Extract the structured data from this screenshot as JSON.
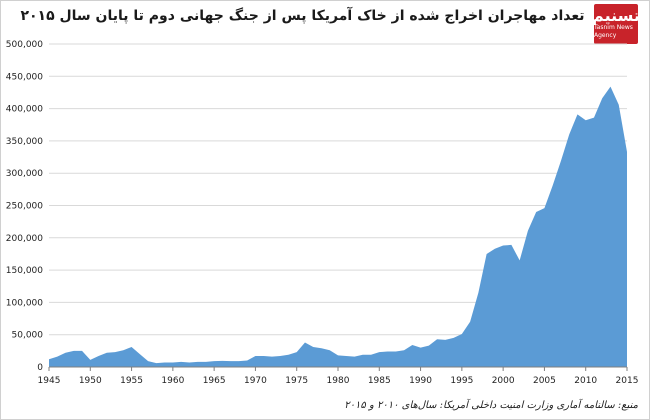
{
  "logo": {
    "mark": "تسنیم",
    "sub": "Tasnim News Agency"
  },
  "colors": {
    "area": "#5b9bd5",
    "grid": "#d9d9d9",
    "axis": "#7f7f7f"
  },
  "chart_data": {
    "type": "area",
    "title": "تعداد مهاجران اخراج شده از خاک آمریکا پس از جنگ جهانی دوم تا پایان سال ۲۰۱۵",
    "xlabel": "",
    "ylabel": "",
    "xlim": [
      1945,
      2015
    ],
    "ylim": [
      0,
      500000
    ],
    "grid": true,
    "x": [
      1945,
      1946,
      1947,
      1948,
      1949,
      1950,
      1951,
      1952,
      1953,
      1954,
      1955,
      1956,
      1957,
      1958,
      1959,
      1960,
      1961,
      1962,
      1963,
      1964,
      1965,
      1966,
      1967,
      1968,
      1969,
      1970,
      1971,
      1972,
      1973,
      1974,
      1975,
      1976,
      1977,
      1978,
      1979,
      1980,
      1981,
      1982,
      1983,
      1984,
      1985,
      1986,
      1987,
      1988,
      1989,
      1990,
      1991,
      1992,
      1993,
      1994,
      1995,
      1996,
      1997,
      1998,
      1999,
      2000,
      2001,
      2002,
      2003,
      2004,
      2005,
      2006,
      2007,
      2008,
      2009,
      2010,
      2011,
      2012,
      2013,
      2014,
      2015
    ],
    "values": [
      12000,
      16000,
      22000,
      25000,
      25000,
      11000,
      17000,
      22000,
      23000,
      26000,
      31000,
      20000,
      9000,
      6000,
      7000,
      7000,
      8000,
      7000,
      8000,
      8000,
      9000,
      9500,
      9000,
      9000,
      10000,
      17000,
      17000,
      16000,
      17000,
      19000,
      23000,
      38000,
      31000,
      29000,
      26000,
      18000,
      17000,
      16000,
      19000,
      19000,
      23000,
      24000,
      24000,
      26000,
      34000,
      30000,
      33000,
      43000,
      42000,
      45000,
      51000,
      70000,
      115000,
      175000,
      183000,
      188000,
      189000,
      165000,
      211000,
      240000,
      246000,
      281000,
      319000,
      360000,
      391000,
      382000,
      386000,
      416000,
      434000,
      406000,
      333000
    ],
    "yticks": [
      0,
      50000,
      100000,
      150000,
      200000,
      250000,
      300000,
      350000,
      400000,
      450000,
      500000
    ],
    "ytick_labels": [
      "0",
      "50,000",
      "100,000",
      "150,000",
      "200,000",
      "250,000",
      "300,000",
      "350,000",
      "400,000",
      "450,000",
      "500,000"
    ],
    "xticks": [
      1945,
      1950,
      1955,
      1960,
      1965,
      1970,
      1975,
      1980,
      1985,
      1990,
      1995,
      2000,
      2005,
      2010,
      2015
    ],
    "xtick_labels": [
      "1945",
      "1950",
      "1955",
      "1960",
      "1965",
      "1970",
      "1975",
      "1980",
      "1985",
      "1990",
      "1995",
      "2000",
      "2005",
      "2010",
      "2015"
    ]
  },
  "source": "منبع: سالنامه آماری وزارت امنیت داخلی آمریکا: سال‌های ۲۰۱۰ و ۲۰۱۵"
}
